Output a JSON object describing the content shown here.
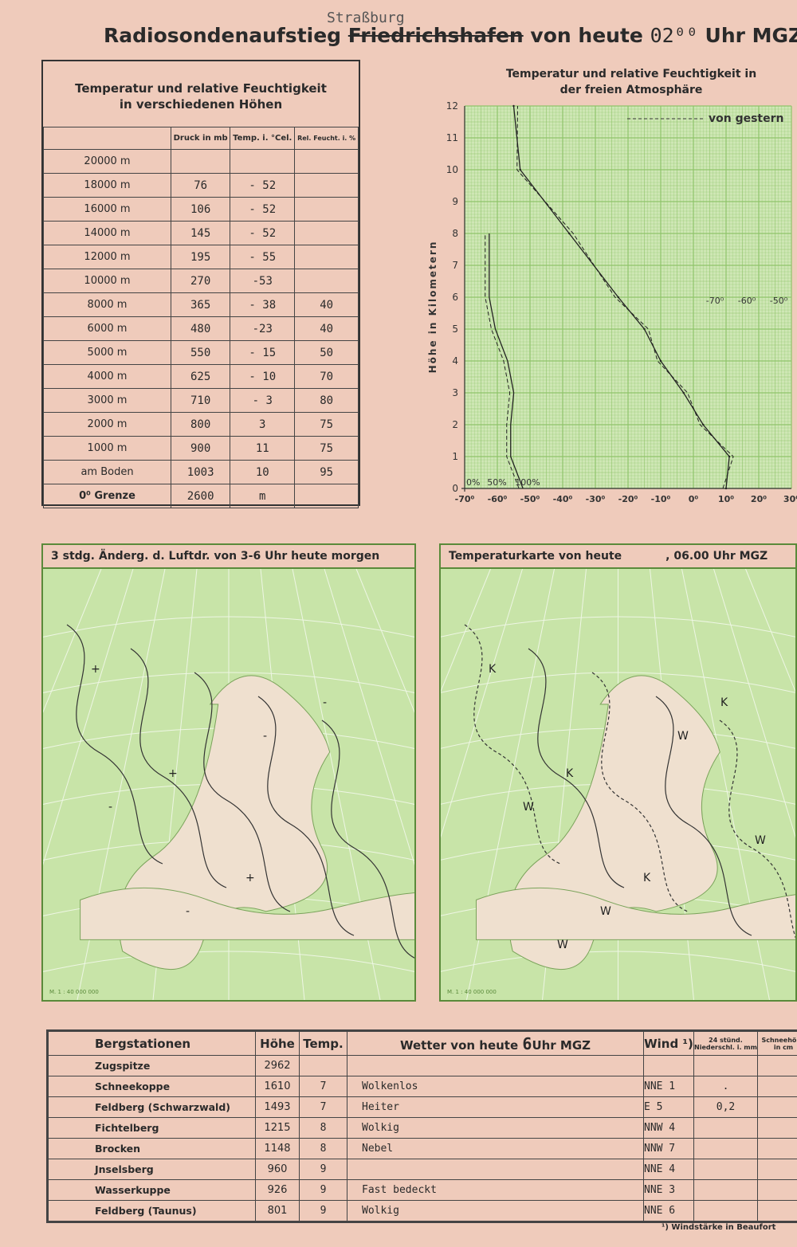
{
  "header": {
    "title_prefix": "Radiosondenaufstieg",
    "station_struck": "Friedrichshafen",
    "station_correction": "Straßburg",
    "title_mid": "von heute",
    "time": "02⁰⁰",
    "title_suffix": "Uhr MGZ"
  },
  "radiosonde_table": {
    "caption_line1": "Temperatur und relative Feuchtigkeit",
    "caption_line2": "in verschiedenen Höhen",
    "columns": [
      "Druck in mb",
      "Temp. i. °Cel.",
      "Rel. Feucht. i. %"
    ],
    "rows": [
      {
        "height": "20000 m",
        "pressure": "",
        "temp": "",
        "humidity": ""
      },
      {
        "height": "18000 m",
        "pressure": "76",
        "temp": "- 52",
        "humidity": ""
      },
      {
        "height": "16000 m",
        "pressure": "106",
        "temp": "- 52",
        "humidity": ""
      },
      {
        "height": "14000 m",
        "pressure": "145",
        "temp": "- 52",
        "humidity": ""
      },
      {
        "height": "12000 m",
        "pressure": "195",
        "temp": "- 55",
        "humidity": ""
      },
      {
        "height": "10000 m",
        "pressure": "270",
        "temp": "-53",
        "humidity": ""
      },
      {
        "height": "8000 m",
        "pressure": "365",
        "temp": "- 38",
        "humidity": "40"
      },
      {
        "height": "6000 m",
        "pressure": "480",
        "temp": "-23",
        "humidity": "40"
      },
      {
        "height": "5000 m",
        "pressure": "550",
        "temp": "- 15",
        "humidity": "50"
      },
      {
        "height": "4000 m",
        "pressure": "625",
        "temp": "- 10",
        "humidity": "70"
      },
      {
        "height": "3000 m",
        "pressure": "710",
        "temp": "- 3",
        "humidity": "80"
      },
      {
        "height": "2000 m",
        "pressure": "800",
        "temp": "3",
        "humidity": "75"
      },
      {
        "height": "1000 m",
        "pressure": "900",
        "temp": "11",
        "humidity": "75"
      },
      {
        "height": "am Boden",
        "pressure": "1003",
        "temp": "10",
        "humidity": "95"
      }
    ],
    "zero_line_label": "0⁰ Grenze",
    "zero_line_value": "2600",
    "zero_line_unit": "m"
  },
  "chart_data": {
    "type": "line",
    "title": "Temperatur und relative Feuchtigkeit in der freien Atmosphäre",
    "ylabel": "Höhe in Kilometern",
    "ylim": [
      0,
      12
    ],
    "xlim": [
      -70,
      30
    ],
    "yticks": [
      "0",
      "1",
      "2",
      "3",
      "4",
      "5",
      "6",
      "7",
      "8",
      "9",
      "10",
      "11",
      "12"
    ],
    "xticks": [
      "-70⁰",
      "-60⁰",
      "-50⁰",
      "-40⁰",
      "-30⁰",
      "-20⁰",
      "-10⁰",
      "0⁰",
      "10⁰",
      "20⁰",
      "30⁰"
    ],
    "humidity_ticks": [
      "0%",
      "50%",
      "100%"
    ],
    "upper_scale_ticks": [
      "-70⁰",
      "-60⁰",
      "-50⁰"
    ],
    "legend": {
      "dashed": "von gestern"
    },
    "grid": true,
    "colors": {
      "grid": "#8fc46a",
      "background": "#cfe7b5"
    },
    "series": [
      {
        "kind": "temperature",
        "points": [
          [
            10,
            0
          ],
          [
            11,
            1
          ],
          [
            3,
            2
          ],
          [
            -3,
            3
          ],
          [
            -10,
            4
          ],
          [
            -15,
            5
          ],
          [
            -23,
            6
          ],
          [
            -38,
            8
          ],
          [
            -53,
            10
          ],
          [
            -55,
            12
          ]
        ]
      },
      {
        "kind": "humidity_percent",
        "points": [
          [
            95,
            0
          ],
          [
            75,
            1
          ],
          [
            75,
            2
          ],
          [
            80,
            3
          ],
          [
            70,
            4
          ],
          [
            50,
            5
          ],
          [
            40,
            6
          ],
          [
            40,
            8
          ]
        ]
      }
    ]
  },
  "map_pressure": {
    "title": "3 stdg. Änderg. d. Luftdr. von 3-6 Uhr heute morgen",
    "scale": "M. 1 : 40 000 000",
    "labels": [
      "+",
      "+",
      "+",
      "-",
      "-",
      "-",
      "-"
    ]
  },
  "map_temperature": {
    "title": "Temperaturkarte von heute",
    "time": ", 06.00 Uhr MGZ",
    "scale": "M. 1 : 40 000 000",
    "labels": [
      "K",
      "K",
      "K",
      "K",
      "W",
      "W",
      "W",
      "W",
      "W"
    ]
  },
  "mountain_table": {
    "columns": [
      "Bergstationen",
      "Höhe",
      "Temp.",
      "Wetter von heute",
      "Wind ¹)",
      "24 stünd. Niederschl. i. mm",
      "Schneehöhe in cm"
    ],
    "weather_time": "6",
    "weather_time_suffix": "Uhr MGZ",
    "rows": [
      {
        "name": "Zugspitze",
        "height": "2962",
        "temp": "",
        "weather": "",
        "wind": "",
        "precip": ""
      },
      {
        "name": "Schneekoppe",
        "height": "1610",
        "temp": "7",
        "weather": "Wolkenlos",
        "wind": "NNE 1",
        "precip": "."
      },
      {
        "name": "Feldberg (Schwarzwald)",
        "height": "1493",
        "temp": "7",
        "weather": "Heiter",
        "wind": "E 5",
        "precip": "0,2"
      },
      {
        "name": "Fichtelberg",
        "height": "1215",
        "temp": "8",
        "weather": "Wolkig",
        "wind": "NNW 4",
        "precip": ""
      },
      {
        "name": "Brocken",
        "height": "1148",
        "temp": "8",
        "weather": "Nebel",
        "wind": "NNW 7",
        "precip": ""
      },
      {
        "name": "Jnselsberg",
        "height": "960",
        "temp": "9",
        "weather": "",
        "wind": "NNE 4",
        "precip": ""
      },
      {
        "name": "Wasserkuppe",
        "height": "926",
        "temp": "9",
        "weather": "Fast bedeckt",
        "wind": "NNE 3",
        "precip": ""
      },
      {
        "name": "Feldberg (Taunus)",
        "height": "801",
        "temp": "9",
        "weather": "Wolkig",
        "wind": "NNE 6",
        "precip": ""
      }
    ],
    "footnote": "¹) Windstärke in Beaufort"
  }
}
